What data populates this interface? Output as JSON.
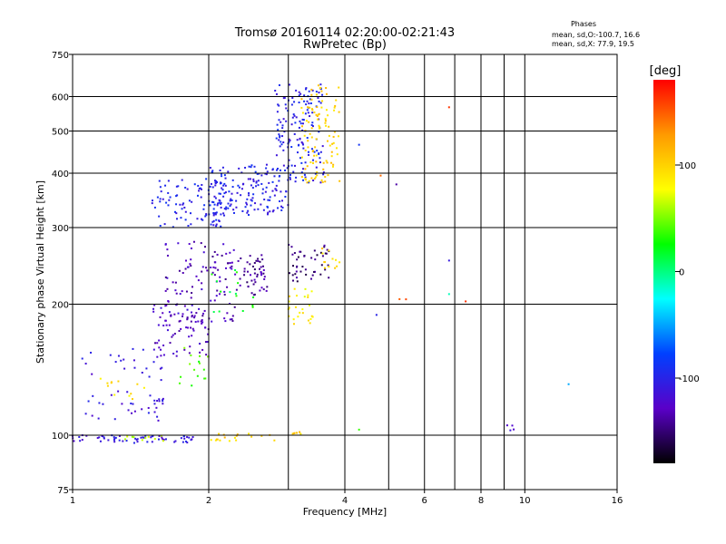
{
  "chart_data": {
    "type": "scatter",
    "title": "Tromsø 20160114 02:20:00-02:21:43",
    "subtitle": "RwPretec (Bp)",
    "xlabel": "Frequency [MHz]",
    "ylabel": "Stationary phase Virtual Height [km]",
    "x_scale": "log",
    "y_scale": "log",
    "xlim": [
      1,
      16
    ],
    "ylim": [
      75,
      750
    ],
    "x_ticks": [
      1,
      2,
      4,
      6,
      8,
      10,
      16
    ],
    "x_ticks_unlabeled": [
      3,
      5,
      7,
      9
    ],
    "y_ticks": [
      75,
      100,
      200,
      300,
      400,
      500,
      600,
      750
    ],
    "grid": true,
    "legend": {
      "title": "Phases",
      "lines": [
        "mean, sd,O:-100.7, 16.6",
        "mean, sd,X:  77.9, 19.5"
      ],
      "position": "top-right"
    },
    "colorbar": {
      "label": "[deg]",
      "range": [
        -180,
        180
      ],
      "ticks": [
        100,
        0,
        -100
      ],
      "colors": [
        "#ff0000",
        "#ff9a00",
        "#ffff00",
        "#00ff00",
        "#00ffff",
        "#0040ff",
        "#5a00c8",
        "#000000"
      ]
    },
    "clusters": [
      {
        "x": [
          1.0,
          1.9
        ],
        "y": [
          96,
          100
        ],
        "phase": -110,
        "n": 60
      },
      {
        "x": [
          1.3,
          1.6
        ],
        "y": [
          97,
          100
        ],
        "phase": 60,
        "n": 10
      },
      {
        "x": [
          2.0,
          2.8
        ],
        "y": [
          97,
          101
        ],
        "phase": 100,
        "n": 18
      },
      {
        "x": [
          3.0,
          3.2
        ],
        "y": [
          100,
          102
        ],
        "phase": 100,
        "n": 6
      },
      {
        "x": [
          1.05,
          1.6
        ],
        "y": [
          108,
          160
        ],
        "phase": -110,
        "n": 50
      },
      {
        "x": [
          1.15,
          1.45
        ],
        "y": [
          115,
          135
        ],
        "phase": 90,
        "n": 12
      },
      {
        "x": [
          1.5,
          1.6
        ],
        "y": [
          118,
          122
        ],
        "phase": -110,
        "n": 8
      },
      {
        "x": [
          1.5,
          2.0
        ],
        "y": [
          150,
          200
        ],
        "phase": -125,
        "n": 70
      },
      {
        "x": [
          1.7,
          2.0
        ],
        "y": [
          130,
          160
        ],
        "phase": 40,
        "n": 15
      },
      {
        "x": [
          1.6,
          2.3
        ],
        "y": [
          180,
          280
        ],
        "phase": -130,
        "n": 110
      },
      {
        "x": [
          2.0,
          2.6
        ],
        "y": [
          190,
          240
        ],
        "phase": 20,
        "n": 15
      },
      {
        "x": [
          2.3,
          2.7
        ],
        "y": [
          210,
          260
        ],
        "phase": -140,
        "n": 50
      },
      {
        "x": [
          3.0,
          3.4
        ],
        "y": [
          180,
          220
        ],
        "phase": 85,
        "n": 25
      },
      {
        "x": [
          3.0,
          3.7
        ],
        "y": [
          225,
          275
        ],
        "phase": -150,
        "n": 45
      },
      {
        "x": [
          3.5,
          3.9
        ],
        "y": [
          240,
          270
        ],
        "phase": 100,
        "n": 12
      },
      {
        "x": [
          1.5,
          2.2
        ],
        "y": [
          300,
          390
        ],
        "phase": -100,
        "n": 100
      },
      {
        "x": [
          2.0,
          3.0
        ],
        "y": [
          320,
          420
        ],
        "phase": -100,
        "n": 150
      },
      {
        "x": [
          2.8,
          3.6
        ],
        "y": [
          380,
          640
        ],
        "phase": -100,
        "n": 150
      },
      {
        "x": [
          3.2,
          3.9
        ],
        "y": [
          380,
          640
        ],
        "phase": 100,
        "n": 100
      },
      {
        "x": [
          4.3,
          4.3
        ],
        "y": [
          465,
          465
        ],
        "phase": -90,
        "n": 1
      },
      {
        "x": [
          4.8,
          4.8
        ],
        "y": [
          395,
          395
        ],
        "phase": 150,
        "n": 1
      },
      {
        "x": [
          5.2,
          5.2
        ],
        "y": [
          377,
          377
        ],
        "phase": -140,
        "n": 1
      },
      {
        "x": [
          6.8,
          6.8
        ],
        "y": [
          567,
          567
        ],
        "phase": 150,
        "n": 1
      },
      {
        "x": [
          5.2,
          5.5
        ],
        "y": [
          205,
          206
        ],
        "phase": 150,
        "n": 2
      },
      {
        "x": [
          6.8,
          6.8
        ],
        "y": [
          252,
          252
        ],
        "phase": -100,
        "n": 1
      },
      {
        "x": [
          6.8,
          6.8
        ],
        "y": [
          211,
          211
        ],
        "phase": 0,
        "n": 1
      },
      {
        "x": [
          7.4,
          7.4
        ],
        "y": [
          203,
          203
        ],
        "phase": 150,
        "n": 1
      },
      {
        "x": [
          4.7,
          4.7
        ],
        "y": [
          189,
          189
        ],
        "phase": -90,
        "n": 1
      },
      {
        "x": [
          9.1,
          9.5
        ],
        "y": [
          101,
          110
        ],
        "phase": -110,
        "n": 4
      },
      {
        "x": [
          12.5,
          12.5
        ],
        "y": [
          131,
          131
        ],
        "phase": -60,
        "n": 1
      },
      {
        "x": [
          4.3,
          4.3
        ],
        "y": [
          103,
          103
        ],
        "phase": 50,
        "n": 1
      }
    ]
  }
}
